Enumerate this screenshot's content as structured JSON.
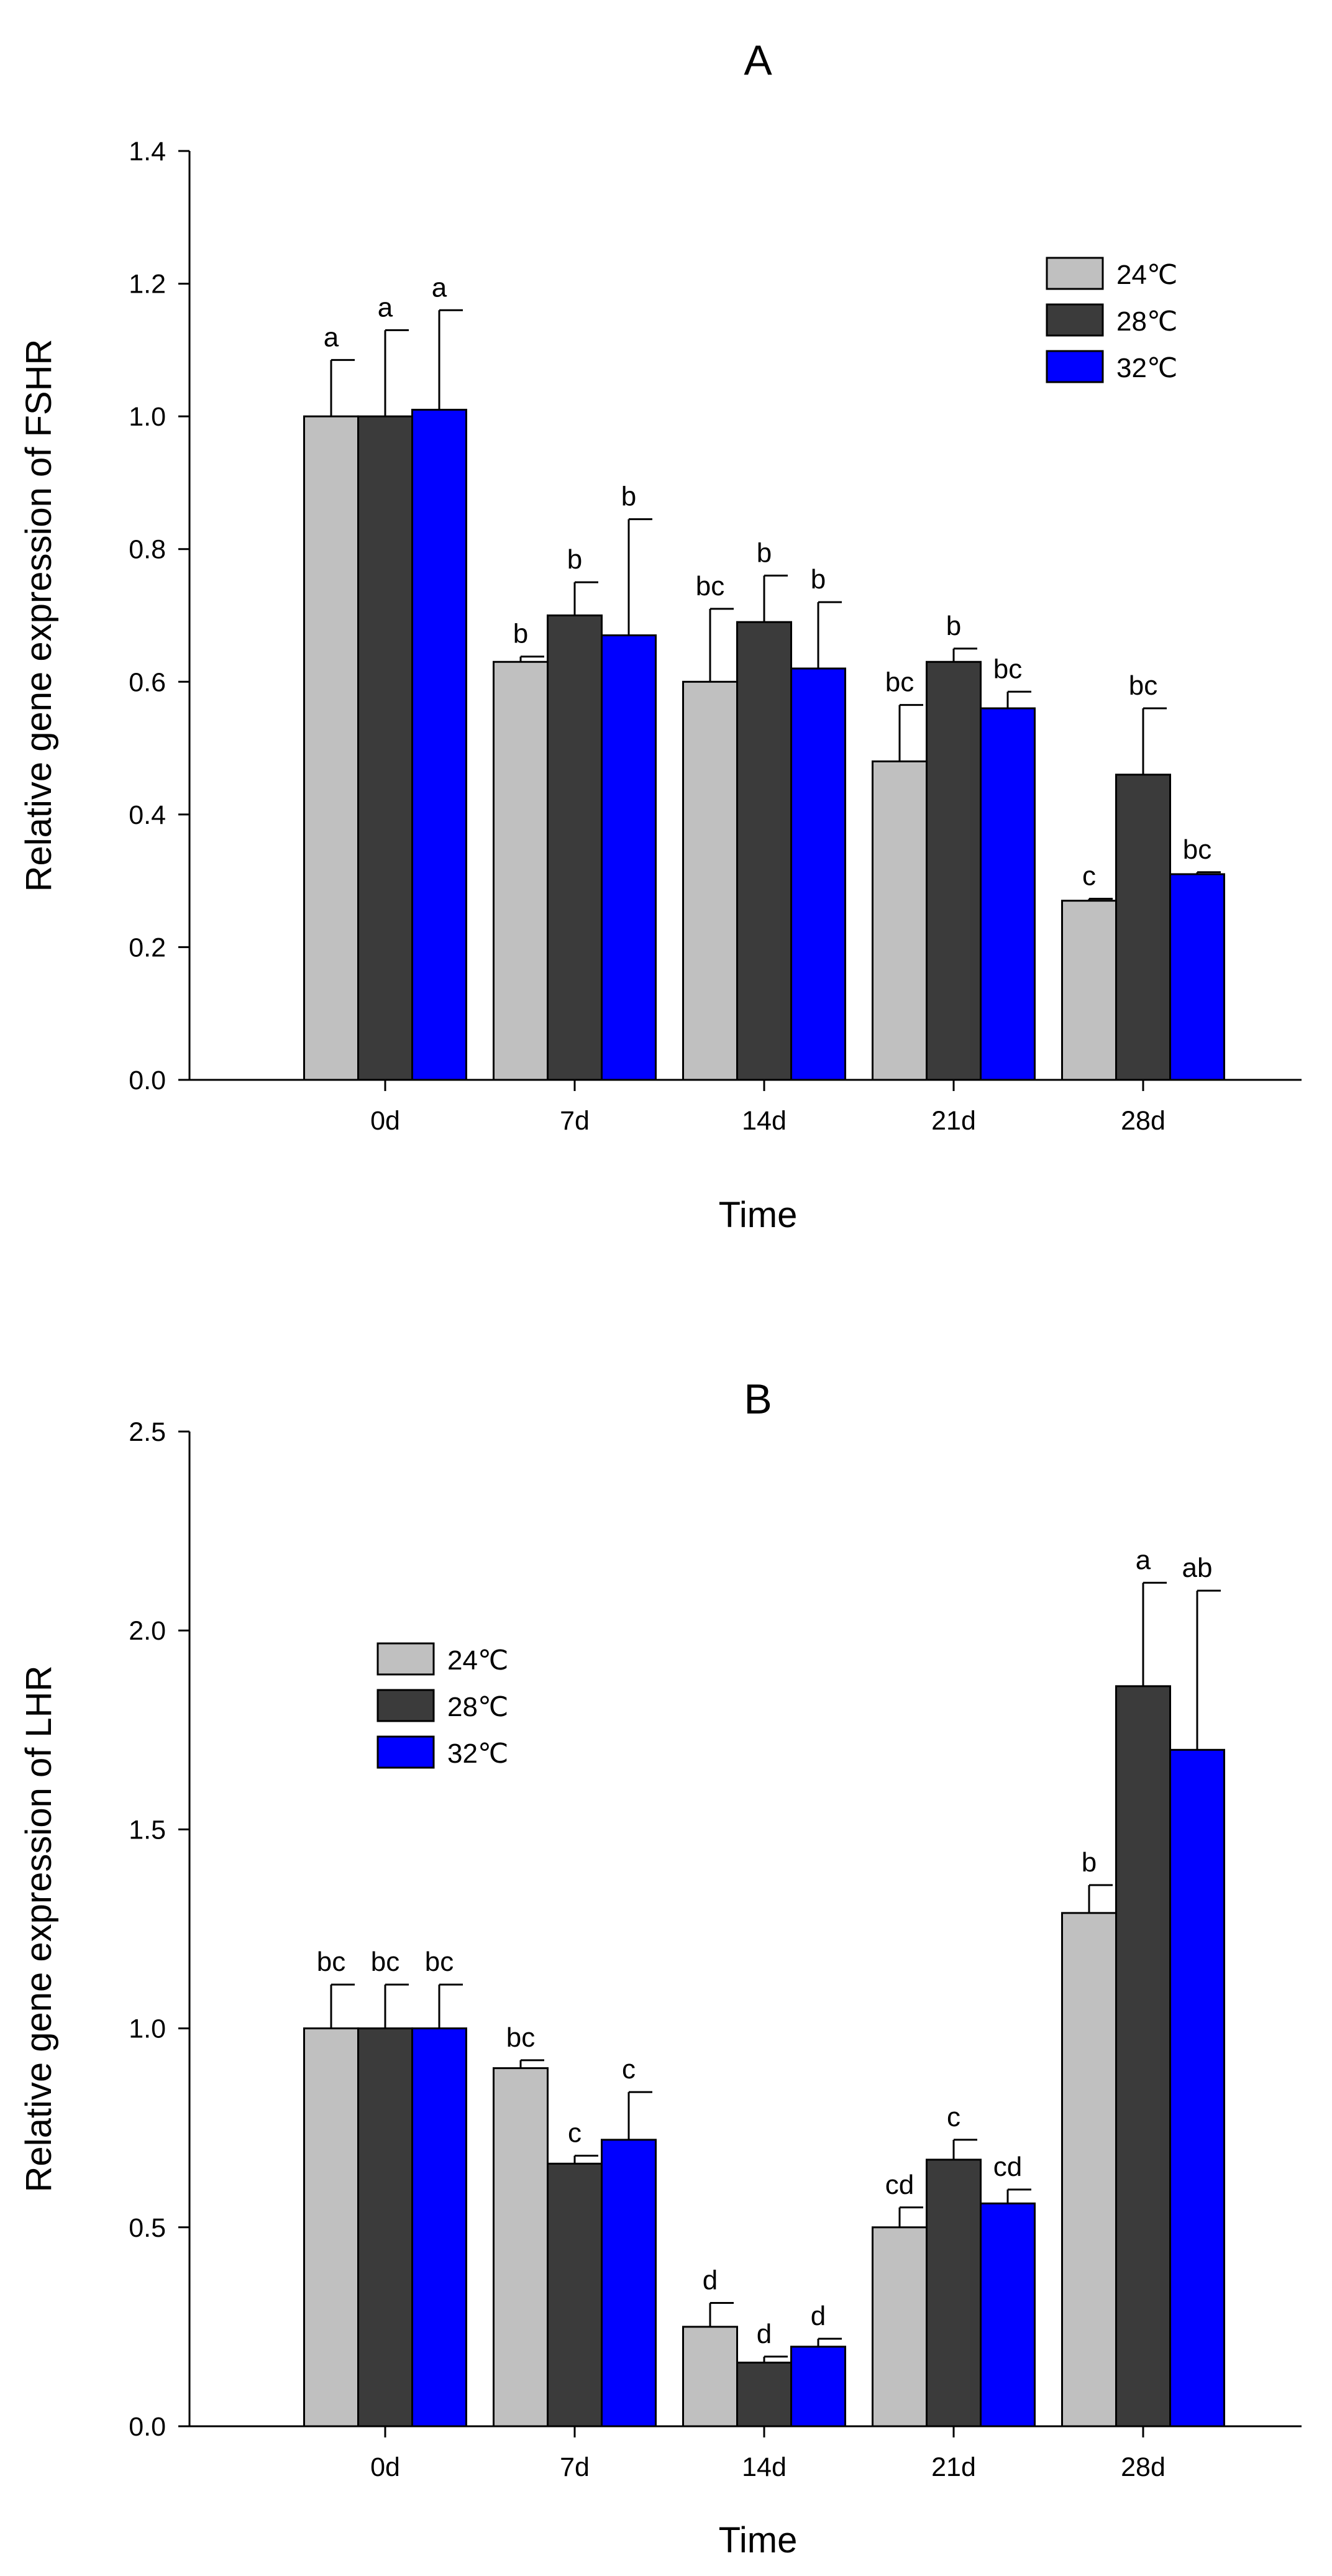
{
  "chart_data": [
    {
      "type": "bar",
      "title": "A",
      "xlabel": "Time",
      "ylabel": "Relative gene expression of FSHR",
      "ylim": [
        0,
        1.4
      ],
      "yticks": [
        "0.0",
        "0.2",
        "0.4",
        "0.6",
        "0.8",
        "1.0",
        "1.2",
        "1.4"
      ],
      "categories": [
        "0d",
        "7d",
        "14d",
        "21d",
        "28d"
      ],
      "legend_position": "top-right",
      "series": [
        {
          "name": "24℃",
          "color": "#c0c0c0",
          "values": [
            1.0,
            0.63,
            0.6,
            0.48,
            0.27
          ],
          "errors": [
            0.085,
            0.008,
            0.11,
            0.085,
            0.003
          ],
          "letters": [
            "a",
            "b",
            "bc",
            "bc",
            "c"
          ]
        },
        {
          "name": "28℃",
          "color": "#3b3b3b",
          "values": [
            1.0,
            0.7,
            0.69,
            0.63,
            0.46
          ],
          "errors": [
            0.13,
            0.05,
            0.07,
            0.02,
            0.1
          ],
          "letters": [
            "a",
            "b",
            "b",
            "b",
            "bc"
          ]
        },
        {
          "name": "32℃",
          "color": "#0000ff",
          "values": [
            1.01,
            0.67,
            0.62,
            0.56,
            0.31
          ],
          "errors": [
            0.15,
            0.175,
            0.1,
            0.025,
            0.003
          ],
          "letters": [
            "a",
            "b",
            "b",
            "bc",
            "bc"
          ]
        }
      ]
    },
    {
      "type": "bar",
      "title": "B",
      "xlabel": "Time",
      "ylabel": "Relative gene expression of LHR",
      "ylim": [
        0,
        2.5
      ],
      "yticks": [
        "0.0",
        "0.5",
        "1.0",
        "1.5",
        "2.0",
        "2.5"
      ],
      "categories": [
        "0d",
        "7d",
        "14d",
        "21d",
        "28d"
      ],
      "legend_position": "top-left",
      "series": [
        {
          "name": "24℃",
          "color": "#c0c0c0",
          "values": [
            1.0,
            0.9,
            0.25,
            0.5,
            1.29
          ],
          "errors": [
            0.11,
            0.02,
            0.06,
            0.05,
            0.07
          ],
          "letters": [
            "bc",
            "bc",
            "d",
            "cd",
            "b"
          ]
        },
        {
          "name": "28℃",
          "color": "#3b3b3b",
          "values": [
            1.0,
            0.66,
            0.16,
            0.67,
            1.86
          ],
          "errors": [
            0.11,
            0.02,
            0.015,
            0.05,
            0.26
          ],
          "letters": [
            "bc",
            "c",
            "d",
            "c",
            "a"
          ]
        },
        {
          "name": "32℃",
          "color": "#0000ff",
          "values": [
            1.0,
            0.72,
            0.2,
            0.56,
            1.7
          ],
          "errors": [
            0.11,
            0.12,
            0.02,
            0.035,
            0.4
          ],
          "letters": [
            "bc",
            "c",
            "d",
            "cd",
            "ab"
          ]
        }
      ]
    }
  ]
}
